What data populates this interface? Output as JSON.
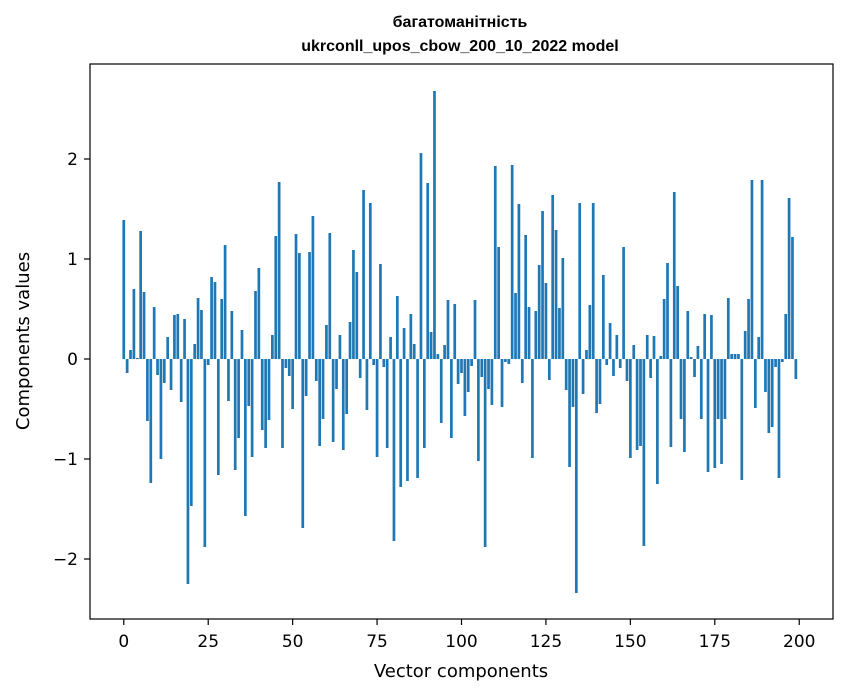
{
  "chart_data": {
    "type": "bar",
    "title": "багатоманітність",
    "subtitle": "ukrconll_upos_cbow_200_10_2022 model",
    "xlabel": "Vector components",
    "ylabel": "Components values",
    "xlim": [
      -10,
      210
    ],
    "ylim": [
      -2.6,
      2.95
    ],
    "xticks": [
      0,
      25,
      50,
      75,
      100,
      125,
      150,
      175,
      200
    ],
    "yticks": [
      -2,
      -1,
      0,
      1,
      2
    ],
    "ytick_labels": [
      "−2",
      "−1",
      "0",
      "1",
      "2"
    ],
    "grid": false,
    "bar_color": "#1f77b4",
    "x": [
      0,
      1,
      2,
      3,
      4,
      5,
      6,
      7,
      8,
      9,
      10,
      11,
      12,
      13,
      14,
      15,
      16,
      17,
      18,
      19,
      20,
      21,
      22,
      23,
      24,
      25,
      26,
      27,
      28,
      29,
      30,
      31,
      32,
      33,
      34,
      35,
      36,
      37,
      38,
      39,
      40,
      41,
      42,
      43,
      44,
      45,
      46,
      47,
      48,
      49,
      50,
      51,
      52,
      53,
      54,
      55,
      56,
      57,
      58,
      59,
      60,
      61,
      62,
      63,
      64,
      65,
      66,
      67,
      68,
      69,
      70,
      71,
      72,
      73,
      74,
      75,
      76,
      77,
      78,
      79,
      80,
      81,
      82,
      83,
      84,
      85,
      86,
      87,
      88,
      89,
      90,
      91,
      92,
      93,
      94,
      95,
      96,
      97,
      98,
      99,
      100,
      101,
      102,
      103,
      104,
      105,
      106,
      107,
      108,
      109,
      110,
      111,
      112,
      113,
      114,
      115,
      116,
      117,
      118,
      119,
      120,
      121,
      122,
      123,
      124,
      125,
      126,
      127,
      128,
      129,
      130,
      131,
      132,
      133,
      134,
      135,
      136,
      137,
      138,
      139,
      140,
      141,
      142,
      143,
      144,
      145,
      146,
      147,
      148,
      149,
      150,
      151,
      152,
      153,
      154,
      155,
      156,
      157,
      158,
      159,
      160,
      161,
      162,
      163,
      164,
      165,
      166,
      167,
      168,
      169,
      170,
      171,
      172,
      173,
      174,
      175,
      176,
      177,
      178,
      179,
      180,
      181,
      182,
      183,
      184,
      185,
      186,
      187,
      188,
      189,
      190,
      191,
      192,
      193,
      194,
      195,
      196,
      197,
      198,
      199
    ],
    "values": [
      1.39,
      -0.14,
      0.09,
      0.7,
      0.01,
      1.28,
      0.67,
      -0.62,
      -1.24,
      0.52,
      -0.16,
      -1.0,
      -0.24,
      0.22,
      -0.31,
      0.44,
      0.45,
      -0.43,
      0.4,
      -2.25,
      -1.47,
      0.15,
      0.61,
      0.49,
      -1.88,
      -0.06,
      0.82,
      0.77,
      -1.16,
      0.6,
      1.14,
      -0.42,
      0.48,
      -1.11,
      -0.79,
      0.29,
      -1.57,
      -0.47,
      -0.98,
      0.68,
      0.91,
      -0.71,
      -0.89,
      -0.61,
      0.24,
      1.23,
      1.77,
      -0.89,
      -0.09,
      -0.17,
      -0.5,
      1.25,
      1.06,
      -1.69,
      -0.37,
      1.07,
      1.43,
      -0.22,
      -0.87,
      -0.6,
      0.34,
      1.26,
      -0.83,
      -0.3,
      0.24,
      -0.91,
      -0.55,
      0.37,
      1.09,
      0.87,
      -0.19,
      1.69,
      -0.51,
      1.56,
      -0.06,
      -0.98,
      0.95,
      -0.08,
      -0.89,
      0.22,
      -1.82,
      0.63,
      -1.28,
      0.31,
      -1.22,
      0.45,
      0.15,
      -1.19,
      2.06,
      -0.89,
      1.76,
      0.27,
      2.68,
      0.05,
      -0.64,
      0.14,
      0.59,
      -0.79,
      0.55,
      -0.25,
      -0.14,
      -0.57,
      -0.33,
      -0.07,
      0.59,
      -1.02,
      -0.18,
      -1.88,
      -0.3,
      -0.46,
      1.93,
      1.12,
      -0.48,
      -0.03,
      -0.05,
      1.94,
      0.66,
      1.55,
      -0.24,
      1.24,
      0.52,
      -0.99,
      0.48,
      0.94,
      1.48,
      0.76,
      -0.21,
      1.64,
      1.29,
      0.51,
      1.01,
      -0.31,
      -1.08,
      -0.48,
      -2.34,
      1.56,
      -0.35,
      0.09,
      0.54,
      1.56,
      -0.54,
      -0.45,
      0.84,
      -0.06,
      0.36,
      -0.17,
      0.24,
      -0.09,
      1.12,
      -0.22,
      -0.99,
      0.14,
      -0.91,
      -0.87,
      -1.87,
      0.24,
      -0.19,
      0.23,
      -1.25,
      0.03,
      0.6,
      0.96,
      -0.88,
      1.67,
      0.73,
      -0.6,
      -0.93,
      0.48,
      0.02,
      -0.18,
      0.13,
      -0.6,
      0.45,
      -1.13,
      0.44,
      -1.09,
      -0.6,
      -1.05,
      -0.6,
      0.61,
      0.05,
      0.05,
      0.05,
      -1.21,
      0.28,
      0.6,
      1.79,
      -0.49,
      0.22,
      1.79,
      -0.33,
      -0.74,
      -0.68,
      -0.08,
      -1.19,
      -0.03,
      0.45,
      1.61,
      1.22,
      -0.2
    ]
  }
}
